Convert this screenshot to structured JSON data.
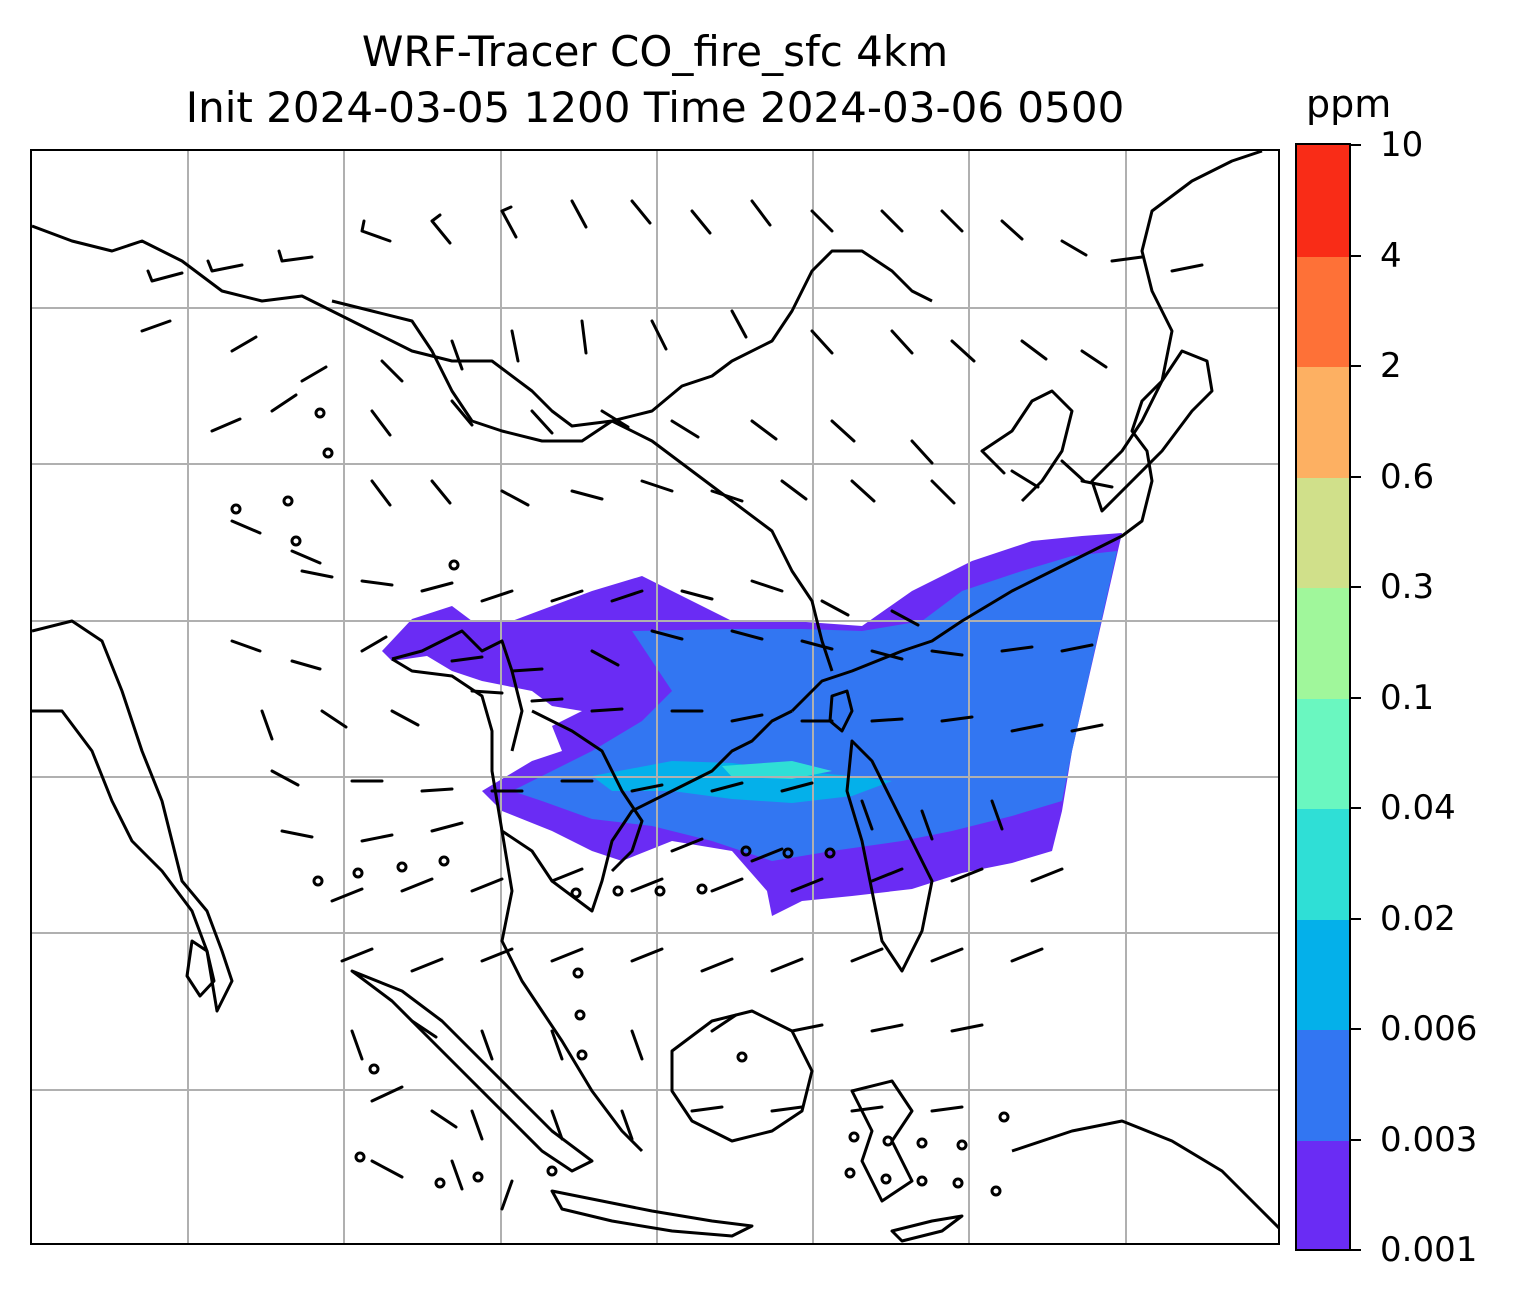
{
  "title": {
    "line1": "WRF-Tracer CO_fire_sfc 4km",
    "line2": "Init 2024-03-05 1200 Time 2024-03-06 0500"
  },
  "colorbar": {
    "units": "ppm",
    "levels": [
      "0.001",
      "0.003",
      "0.006",
      "0.02",
      "0.04",
      "0.1",
      "0.3",
      "0.6",
      "2",
      "4",
      "10"
    ],
    "colors": [
      "#6a2cf4",
      "#3276f2",
      "#04b0ea",
      "#2fdfd6",
      "#6af7c0",
      "#a0f79b",
      "#d0e08a",
      "#fdb062",
      "#fe7137",
      "#f92c17"
    ]
  },
  "map": {
    "features": [
      "coastlines",
      "country-borders",
      "gridlines",
      "wind-barbs",
      "co-fire-tracer-shading"
    ],
    "gridline_color": "#b0b0b0"
  }
}
